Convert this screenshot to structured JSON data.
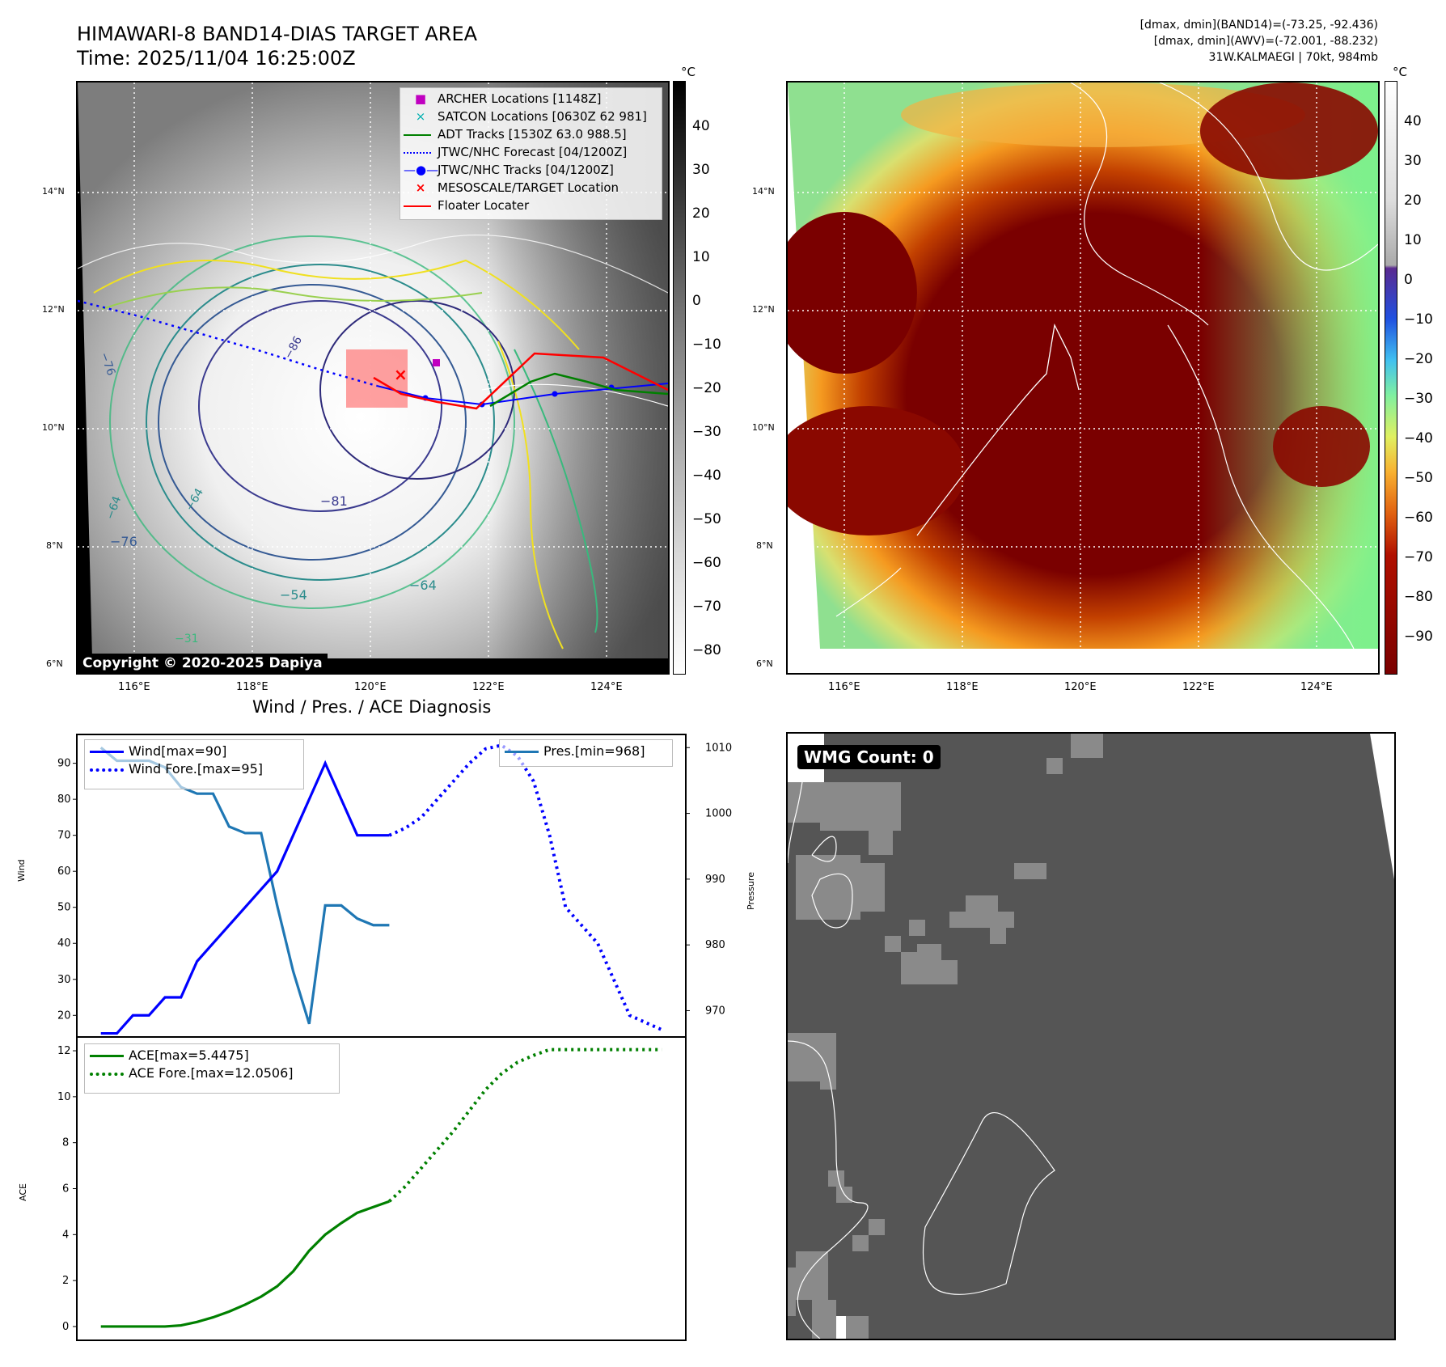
{
  "header": {
    "title_line1": "HIMAWARI-8 BAND14-DIAS TARGET AREA",
    "title_line2": "Time: 2025/11/04 16:25:00Z",
    "info_line1": "[dmax, dmin](BAND14)=(-73.25, -92.436)",
    "info_line2": "[dmax, dmin](AWV)=(-72.001, -88.232)",
    "info_line3": "31W.KALMAEGI | 70kt, 984mb"
  },
  "maps": {
    "lat_ticks": [
      "14°N",
      "12°N",
      "10°N",
      "8°N",
      "6°N"
    ],
    "lon_ticks": [
      "116°E",
      "118°E",
      "120°E",
      "122°E",
      "124°E"
    ],
    "ir_colorbar": {
      "unit": "°C",
      "ticks": [
        "40",
        "30",
        "20",
        "10",
        "0",
        "−10",
        "−20",
        "−30",
        "−40",
        "−50",
        "−60",
        "−70",
        "−80"
      ]
    },
    "wv_colorbar": {
      "unit": "°C",
      "ticks": [
        "40",
        "30",
        "20",
        "10",
        "0",
        "−10",
        "−20",
        "−30",
        "−40",
        "−50",
        "−60",
        "−70",
        "−80",
        "−90"
      ]
    },
    "contour_labels": [
      "−81",
      "−76",
      "−64",
      "−54",
      "−64",
      "−31",
      "−86",
      "−76",
      "−64"
    ],
    "legend": [
      {
        "label": "ARCHER Locations [1148Z]",
        "color": "#c000c0"
      },
      {
        "label": "SATCON Locations [0630Z 62 981]",
        "color": "#00b0b0"
      },
      {
        "label": "ADT Tracks [1530Z 63.0 988.5]",
        "color": "#008000"
      },
      {
        "label": "JTWC/NHC Forecast [04/1200Z]",
        "color": "#0000ff"
      },
      {
        "label": "JTWC/NHC Tracks [04/1200Z]",
        "color": "#0000ff"
      },
      {
        "label": "MESOSCALE/TARGET Location",
        "color": "#ff0000"
      },
      {
        "label": "Floater Locater",
        "color": "#ff0000"
      }
    ],
    "copyright": "Copyright © 2020-2025 Dapiya",
    "wmg_label": "WMG Count: 0"
  },
  "chart_data": [
    {
      "type": "line",
      "title": "Wind / Pres. / ACE Diagnosis",
      "ylabel": "Wind",
      "ylabel_right": "Pressure",
      "ylim": [
        14,
        98
      ],
      "ylim_right": [
        966,
        1012
      ],
      "yticks": [
        20,
        30,
        40,
        50,
        60,
        70,
        80,
        90
      ],
      "yticks_right": [
        970,
        980,
        990,
        1000,
        1010
      ],
      "series": [
        {
          "name": "Wind[max=90]",
          "axis": "left",
          "style": "solid",
          "color": "#0000ff",
          "x": [
            0,
            1,
            2,
            3,
            4,
            5,
            6,
            7,
            8,
            9,
            10,
            11,
            12,
            13,
            14,
            15,
            16,
            17,
            18
          ],
          "values": [
            15,
            15,
            20,
            20,
            25,
            25,
            35,
            40,
            45,
            50,
            55,
            60,
            70,
            80,
            90,
            80,
            70,
            70,
            70
          ]
        },
        {
          "name": "Wind Fore.[max=95]",
          "axis": "left",
          "style": "dotted",
          "color": "#0000ff",
          "x": [
            18,
            19,
            20,
            21,
            22,
            23,
            24,
            25,
            26,
            27,
            28,
            29,
            30,
            31,
            32,
            33,
            34,
            35
          ],
          "values": [
            70,
            72,
            75,
            80,
            85,
            90,
            94,
            95,
            92,
            85,
            70,
            50,
            45,
            40,
            30,
            20,
            18,
            16
          ]
        },
        {
          "name": "Pres.[min=968]",
          "axis": "right",
          "style": "solid",
          "color": "#1f77b4",
          "x": [
            0,
            1,
            2,
            3,
            4,
            5,
            6,
            7,
            8,
            9,
            10,
            11,
            12,
            13,
            14,
            15,
            16,
            17,
            18
          ],
          "values": [
            1010,
            1008,
            1008,
            1008,
            1007,
            1004,
            1003,
            1003,
            998,
            997,
            997,
            986,
            976,
            968,
            986,
            986,
            984,
            983,
            983
          ]
        }
      ]
    },
    {
      "type": "line",
      "ylabel": "ACE",
      "ylim": [
        -0.6,
        12.6
      ],
      "yticks": [
        0,
        2,
        4,
        6,
        8,
        10,
        12
      ],
      "series": [
        {
          "name": "ACE[max=5.4475]",
          "style": "solid",
          "color": "#008000",
          "x": [
            0,
            1,
            2,
            3,
            4,
            5,
            6,
            7,
            8,
            9,
            10,
            11,
            12,
            13,
            14,
            15,
            16,
            17,
            18
          ],
          "values": [
            0,
            0,
            0,
            0,
            0,
            0.05,
            0.2,
            0.4,
            0.65,
            0.95,
            1.3,
            1.75,
            2.4,
            3.3,
            4.0,
            4.5,
            4.95,
            5.2,
            5.4475
          ]
        },
        {
          "name": "ACE Fore.[max=12.0506]",
          "style": "dotted",
          "color": "#008000",
          "x": [
            18,
            19,
            20,
            21,
            22,
            23,
            24,
            25,
            26,
            27,
            28,
            29,
            30,
            31,
            32,
            33,
            34,
            35
          ],
          "values": [
            5.4475,
            6.1,
            6.9,
            7.7,
            8.5,
            9.4,
            10.3,
            11.0,
            11.5,
            11.8,
            12.0506,
            12.0506,
            12.0506,
            12.0506,
            12.0506,
            12.0506,
            12.0506,
            12.0506
          ]
        }
      ]
    }
  ]
}
